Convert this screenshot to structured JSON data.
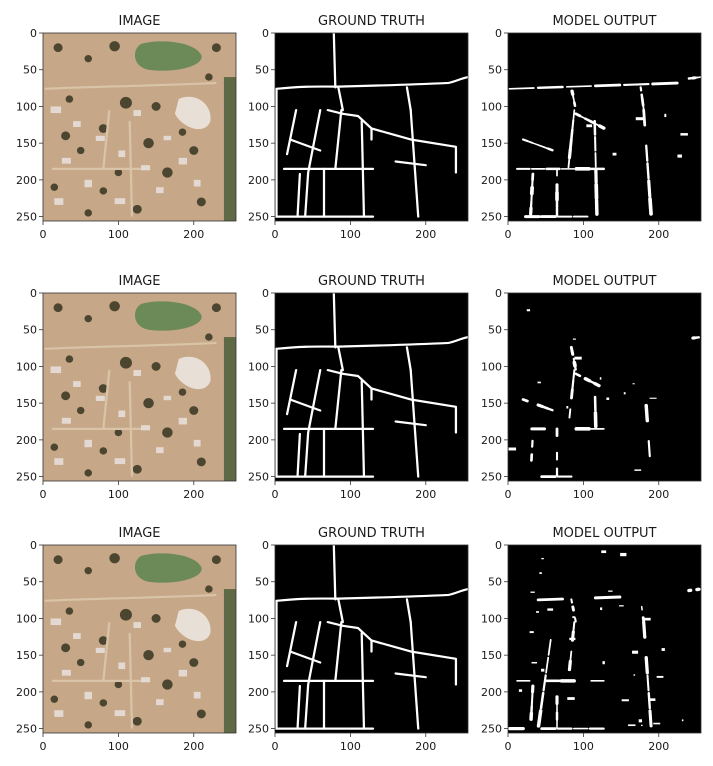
{
  "figure": {
    "panel_titles": [
      "IMAGE",
      "GROUND TRUTH",
      "MODEL OUTPUT"
    ],
    "x_ticks": [
      "0",
      "100",
      "200"
    ],
    "y_ticks": [
      "0",
      "50",
      "100",
      "150",
      "200",
      "250"
    ],
    "rows": [
      {
        "index": 1,
        "model_output": "good"
      },
      {
        "index": 2,
        "model_output": "fragmented"
      },
      {
        "index": 3,
        "model_output": "noisy"
      }
    ],
    "colors": {
      "background": "#ffffff",
      "mask_bg": "#000000",
      "mask_fg": "#ffffff",
      "image_bg": "#c6a788",
      "image_dark": "#4c4630",
      "image_green": "#6c8a58",
      "image_roof": "#e4d9d2"
    }
  }
}
